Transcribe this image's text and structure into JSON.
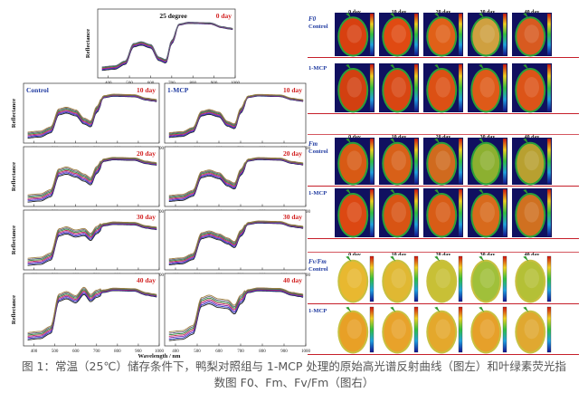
{
  "caption": {
    "line1": "图 1：常温（25℃）储存条件下，鸭梨对照组与 1-MCP 处理的原始高光谱反射曲线（图左）和叶绿素荧光指",
    "line2": "数图 F0、Fm、Fv/Fm（图右）"
  },
  "colors": {
    "day_label": "#d21f1f",
    "group_label": "#1f3aa0",
    "panel_label": "#111111",
    "row_rule": "#c61f2a",
    "leaf_green": "#2e9a2e",
    "curve_colors": [
      "#202020",
      "#2a3cc0",
      "#8a2ab0",
      "#c03050",
      "#2a8a3a",
      "#606080",
      "#a08040"
    ]
  },
  "chart_data": [
    {
      "id": "spec-25-0",
      "type": "line",
      "title": "25 degree",
      "group": "",
      "day": "0 day",
      "ylabel": "Reflectance",
      "xlabel": "",
      "xlim": [
        350,
        1000
      ],
      "xticks": [
        400,
        500,
        600,
        700,
        800,
        900,
        1000
      ],
      "ylim": [
        0,
        1
      ],
      "n_curves": 6,
      "spread": 0.05,
      "shape": {
        "green_peak": 0.5,
        "chl_dip": 0.24,
        "nir": 0.8
      }
    },
    {
      "id": "spec-c-10",
      "type": "line",
      "group": "Control",
      "day": "10 day",
      "ylabel": "Reflectance",
      "xlabel": "",
      "xlim": [
        350,
        1000
      ],
      "xticks": [
        400,
        500,
        600,
        700,
        800,
        900,
        1000
      ],
      "ylim": [
        0,
        1
      ],
      "n_curves": 7,
      "spread": 0.1,
      "shape": {
        "green_peak": 0.55,
        "chl_dip": 0.32,
        "nir": 0.8
      }
    },
    {
      "id": "spec-m-10",
      "type": "line",
      "group": "1-MCP",
      "day": "10 day",
      "ylabel": "",
      "xlabel": "",
      "xlim": [
        350,
        1000
      ],
      "xticks": [
        400,
        500,
        600,
        700,
        800,
        900,
        1000
      ],
      "ylim": [
        0,
        1
      ],
      "n_curves": 7,
      "spread": 0.08,
      "shape": {
        "green_peak": 0.52,
        "chl_dip": 0.28,
        "nir": 0.8
      }
    },
    {
      "id": "spec-c-20",
      "type": "line",
      "group": "",
      "day": "20 day",
      "ylabel": "Reflectance",
      "xlabel": "",
      "xlim": [
        350,
        1000
      ],
      "xticks": [
        400,
        500,
        600,
        700,
        800,
        900,
        1000
      ],
      "ylim": [
        0,
        1
      ],
      "n_curves": 7,
      "spread": 0.12,
      "shape": {
        "green_peak": 0.6,
        "chl_dip": 0.42,
        "nir": 0.8
      }
    },
    {
      "id": "spec-m-20",
      "type": "line",
      "group": "",
      "day": "20 day",
      "ylabel": "",
      "xlabel": "",
      "xlim": [
        350,
        1000
      ],
      "xticks": [
        400,
        500,
        600,
        700,
        800,
        900,
        1000
      ],
      "ylim": [
        0,
        1
      ],
      "n_curves": 7,
      "spread": 0.1,
      "shape": {
        "green_peak": 0.56,
        "chl_dip": 0.34,
        "nir": 0.8
      }
    },
    {
      "id": "spec-c-30",
      "type": "line",
      "group": "",
      "day": "30 day",
      "ylabel": "Reflectance",
      "xlabel": "",
      "xlim": [
        350,
        1000
      ],
      "xticks": [
        400,
        500,
        600,
        700,
        800,
        900,
        1000
      ],
      "ylim": [
        0,
        1
      ],
      "n_curves": 7,
      "spread": 0.12,
      "shape": {
        "green_peak": 0.66,
        "chl_dip": 0.55,
        "nir": 0.78
      }
    },
    {
      "id": "spec-m-30",
      "type": "line",
      "group": "",
      "day": "30 day",
      "ylabel": "",
      "xlabel": "",
      "xlim": [
        350,
        1000
      ],
      "xticks": [
        400,
        500,
        600,
        700,
        800,
        900,
        1000
      ],
      "ylim": [
        0,
        1
      ],
      "n_curves": 7,
      "spread": 0.1,
      "shape": {
        "green_peak": 0.6,
        "chl_dip": 0.42,
        "nir": 0.8
      }
    },
    {
      "id": "spec-c-40",
      "type": "line",
      "group": "",
      "day": "40 day",
      "ylabel": "Reflectance",
      "xlabel": "Wavelength / nm",
      "xlim": [
        350,
        1000
      ],
      "xticks": [
        400,
        500,
        600,
        700,
        800,
        900,
        1000
      ],
      "ylim": [
        0,
        1
      ],
      "n_curves": 7,
      "spread": 0.1,
      "shape": {
        "green_peak": 0.7,
        "chl_dip": 0.66,
        "nir": 0.78
      }
    },
    {
      "id": "spec-m-40",
      "type": "line",
      "group": "",
      "day": "40 day",
      "ylabel": "",
      "xlabel": "",
      "xlim": [
        350,
        1000
      ],
      "xticks": [
        400,
        500,
        600,
        700,
        800,
        900,
        1000
      ],
      "ylim": [
        0,
        1
      ],
      "n_curves": 7,
      "spread": 0.12,
      "shape": {
        "green_peak": 0.64,
        "chl_dip": 0.5,
        "nir": 0.78
      }
    },
    {
      "id": "fluor-images",
      "type": "heatmap",
      "days": [
        "0 day",
        "10 day",
        "20 day",
        "30 day",
        "40 day"
      ],
      "parameters": [
        {
          "name": "F0",
          "rows": [
            {
              "group": "Control",
              "colors": [
                "#d84010",
                "#e04a12",
                "#e06018",
                "#cfa040",
                "#d85a20"
              ]
            },
            {
              "group": "1-MCP",
              "colors": [
                "#d24010",
                "#d84612",
                "#dc5014",
                "#de5a18",
                "#dc5418"
              ]
            }
          ]
        },
        {
          "name": "Fm",
          "rows": [
            {
              "group": "Control",
              "colors": [
                "#d85a14",
                "#d86018",
                "#d06a1e",
                "#8cb030",
                "#b8a030"
              ]
            },
            {
              "group": "1-MCP",
              "colors": [
                "#dc4812",
                "#d85414",
                "#d85c16",
                "#d86a1c",
                "#d07020"
              ]
            }
          ]
        },
        {
          "name": "Fv/Fm",
          "rows": [
            {
              "group": "Control",
              "colors": [
                "#e8b830",
                "#e0b832",
                "#c8c036",
                "#a0c03a",
                "#b4c036"
              ]
            },
            {
              "group": "1-MCP",
              "colors": [
                "#e8a026",
                "#e8a22a",
                "#e4a82c",
                "#e6a02a",
                "#e0a830"
              ]
            }
          ]
        }
      ]
    }
  ]
}
